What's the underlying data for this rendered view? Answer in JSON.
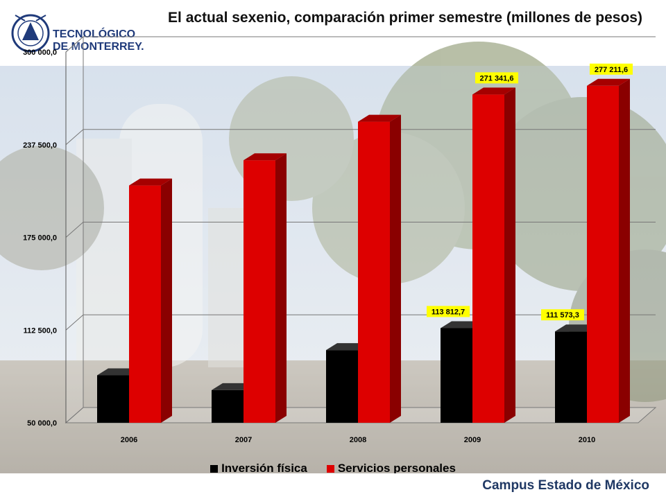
{
  "page": {
    "logo_line1": "TECNOLÓGICO",
    "logo_line2": "DE MONTERREY.",
    "footer": "Campus Estado de México"
  },
  "colors": {
    "series1": "#000000",
    "series2": "#dd0000",
    "label_bg": "#ffff00",
    "footer_text": "#1f3864"
  },
  "chart_data": {
    "type": "bar",
    "title": "El actual sexenio, comparación primer semestre (millones de pesos)",
    "categories": [
      "2006",
      "2007",
      "2008",
      "2009",
      "2010"
    ],
    "series": [
      {
        "name": "Inversión física",
        "values": [
          82000,
          72000,
          99000,
          113812.7,
          111573.3
        ],
        "labels": [
          "",
          "",
          "",
          "113 812,7",
          "111 573,3"
        ]
      },
      {
        "name": "Servicios personales",
        "values": [
          210000,
          227000,
          253000,
          271341.6,
          277211.6
        ],
        "labels": [
          "",
          "",
          "",
          "271 341,6",
          "277 211,6"
        ]
      }
    ],
    "ylim": [
      50000,
      300000
    ],
    "yticks": [
      "50 000,0",
      "112 500,0",
      "175 000,0",
      "237 500,0",
      "300 000,0"
    ],
    "ytick_values": [
      50000,
      112500,
      175000,
      237500,
      300000
    ],
    "grid": true,
    "legend": "bottom"
  }
}
